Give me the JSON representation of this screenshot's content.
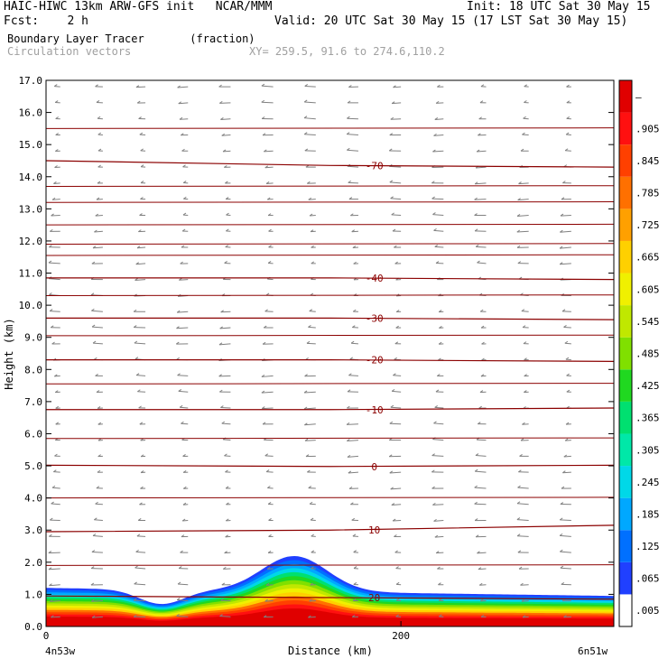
{
  "header": {
    "model_line": "HAIC-HIWC 13km ARW-GFS init   NCAR/MMM",
    "init_line": "Init: 18 UTC Sat 30 May 15",
    "fcst_line": "Fcst:    2 h",
    "valid_line": "Valid: 20 UTC Sat 30 May 15 (17 LST Sat 30 May 15)",
    "field_line": "Boundary Layer Tracer       (fraction)",
    "vector_line": "Circulation vectors",
    "xy_line": "XY= 259.5, 91.6 to 274.6,110.2"
  },
  "chart_data": {
    "type": "heatmap",
    "ylabel": "Height (km)",
    "xlabel": "Distance (km)",
    "x_range": [
      0,
      320
    ],
    "ylim": [
      0,
      17
    ],
    "y_ticks": [
      "0.0",
      "1.0",
      "2.0",
      "3.0",
      "4.0",
      "5.0",
      "6.0",
      "7.0",
      "8.0",
      "9.0",
      "10.0",
      "11.0",
      "12.0",
      "13.0",
      "14.0",
      "15.0",
      "16.0",
      "17.0"
    ],
    "x_ticks": [
      {
        "value": 0,
        "label": "0"
      },
      {
        "value": 200,
        "label": "200"
      }
    ],
    "x_end_labels": {
      "left": "4n53w",
      "right": "6n51w"
    },
    "colorbar": {
      "labels": [
        ".005",
        ".065",
        ".125",
        ".185",
        ".245",
        ".305",
        ".365",
        ".425",
        ".485",
        ".545",
        ".605",
        ".665",
        ".725",
        ".785",
        ".845",
        ".905",
        "–"
      ],
      "colors": [
        "#ffffff",
        "#2040ff",
        "#0070ff",
        "#00a8ff",
        "#00d8e8",
        "#00e8a8",
        "#00e070",
        "#20d820",
        "#80e000",
        "#c0e800",
        "#f0f000",
        "#ffd000",
        "#ffa000",
        "#ff7000",
        "#ff4000",
        "#ff1010",
        "#e00000"
      ]
    },
    "temperature_contours": [
      {
        "label": "20",
        "y": [
          0.95,
          0.9,
          0.85
        ]
      },
      {
        "label": "10",
        "y": [
          2.95,
          3.0,
          3.15
        ]
      },
      {
        "label": "0",
        "y": [
          5.02,
          4.98,
          5.02
        ]
      },
      {
        "label": "-10",
        "y": [
          6.75,
          6.75,
          6.8
        ]
      },
      {
        "label": "-20",
        "y": [
          8.3,
          8.3,
          8.25
        ]
      },
      {
        "label": "-30",
        "y": [
          9.6,
          9.6,
          9.55
        ]
      },
      {
        "label": "-40",
        "y": [
          10.85,
          10.85,
          10.8
        ]
      },
      {
        "label": "-70",
        "y": [
          14.5,
          14.35,
          14.3
        ]
      }
    ],
    "tracer_peak": {
      "x_km": 140,
      "top_km": 2.3
    }
  }
}
